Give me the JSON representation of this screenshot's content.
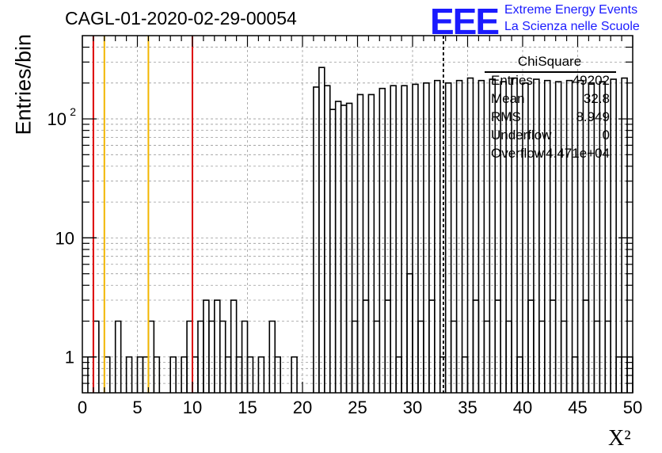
{
  "title": "CAGL-01-2020-02-29-00054",
  "logo": {
    "mark": "EEE",
    "line1": "Extreme Energy Events",
    "line2": "La Scienza nelle Scuole",
    "color": "#1a1aff"
  },
  "stats": {
    "title": "ChiSquare",
    "rows": [
      {
        "label": "Entries",
        "value": "49202"
      },
      {
        "label": "Mean",
        "value": "32.8"
      },
      {
        "label": "RMS",
        "value": "8.949"
      },
      {
        "label": "Underflow",
        "value": "0"
      },
      {
        "label": "Overflow",
        "value": "4.471e+04"
      }
    ]
  },
  "chart_data": {
    "type": "histogram",
    "xlabel": "X²",
    "ylabel": "Entries/bin",
    "xlim": [
      0,
      50
    ],
    "ylim": [
      0.5,
      500
    ],
    "yscale": "log",
    "grid": true,
    "bin_width": 0.5,
    "x_ticks": [
      "0",
      "5",
      "10",
      "15",
      "20",
      "25",
      "30",
      "35",
      "40",
      "45",
      "50"
    ],
    "y_ticks": [
      {
        "value": 1,
        "label": "1"
      },
      {
        "value": 10,
        "label": "10"
      },
      {
        "value": 100,
        "label": "10",
        "exponent": "2"
      }
    ],
    "bins": [
      [
        0.5,
        1
      ],
      [
        1,
        2
      ],
      [
        2,
        1
      ],
      [
        3,
        2
      ],
      [
        4,
        1
      ],
      [
        5,
        1
      ],
      [
        5.5,
        1
      ],
      [
        6,
        2
      ],
      [
        6.5,
        1
      ],
      [
        8,
        1
      ],
      [
        9,
        1
      ],
      [
        9.5,
        2
      ],
      [
        10,
        1
      ],
      [
        10.5,
        2
      ],
      [
        11,
        3
      ],
      [
        11.5,
        2
      ],
      [
        12,
        3
      ],
      [
        12.5,
        2
      ],
      [
        13,
        1
      ],
      [
        13.5,
        3
      ],
      [
        14,
        1
      ],
      [
        14.5,
        2
      ],
      [
        15,
        1
      ],
      [
        16,
        1
      ],
      [
        17,
        2
      ],
      [
        17.5,
        1
      ],
      [
        19,
        1
      ],
      [
        21,
        185
      ],
      [
        21.5,
        270
      ],
      [
        22,
        190
      ],
      [
        22.5,
        120
      ],
      [
        23,
        140
      ],
      [
        23.5,
        130
      ],
      [
        24,
        135
      ],
      [
        24.5,
        2
      ],
      [
        25,
        160
      ],
      [
        25.5,
        3
      ],
      [
        26,
        160
      ],
      [
        26.5,
        2
      ],
      [
        27,
        180
      ],
      [
        27.5,
        3
      ],
      [
        28,
        190
      ],
      [
        28.5,
        1
      ],
      [
        29,
        190
      ],
      [
        29.5,
        5
      ],
      [
        30,
        195
      ],
      [
        30.5,
        2
      ],
      [
        31,
        200
      ],
      [
        31.5,
        3
      ],
      [
        32,
        210
      ],
      [
        32.5,
        1
      ],
      [
        33,
        200
      ],
      [
        33.5,
        2
      ],
      [
        34,
        210
      ],
      [
        34.5,
        1
      ],
      [
        35,
        220
      ],
      [
        35.5,
        3
      ],
      [
        36,
        210
      ],
      [
        36.5,
        2
      ],
      [
        37,
        215
      ],
      [
        37.5,
        3
      ],
      [
        38,
        205
      ],
      [
        38.5,
        2
      ],
      [
        39,
        220
      ],
      [
        39.5,
        1
      ],
      [
        40,
        200
      ],
      [
        40.5,
        3
      ],
      [
        41,
        215
      ],
      [
        41.5,
        2
      ],
      [
        42,
        210
      ],
      [
        42.5,
        3
      ],
      [
        43,
        205
      ],
      [
        43.5,
        2
      ],
      [
        44,
        210
      ],
      [
        44.5,
        1
      ],
      [
        45,
        210
      ],
      [
        45.5,
        3
      ],
      [
        46,
        200
      ],
      [
        46.5,
        2
      ],
      [
        47,
        205
      ],
      [
        47.5,
        2
      ],
      [
        48,
        215
      ],
      [
        48.5,
        1
      ],
      [
        49,
        220
      ],
      [
        49.5,
        1
      ]
    ],
    "vertical_lines": [
      {
        "x": 1,
        "color": "#dd0000",
        "style": "solid"
      },
      {
        "x": 2,
        "color": "#f2b600",
        "style": "solid"
      },
      {
        "x": 6,
        "color": "#f2b600",
        "style": "solid"
      },
      {
        "x": 10,
        "color": "#dd0000",
        "style": "solid"
      },
      {
        "x": 32.8,
        "color": "#000000",
        "style": "dashed"
      }
    ]
  }
}
